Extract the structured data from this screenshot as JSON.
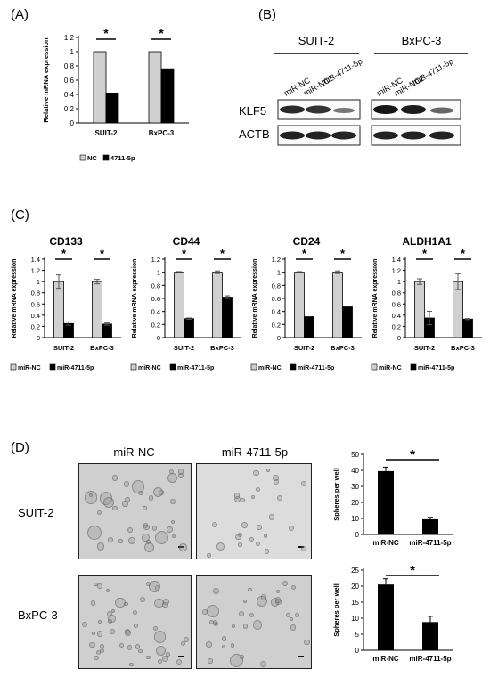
{
  "panels": {
    "A": "(A)",
    "B": "(B)",
    "C": "(C)",
    "D": "(D)"
  },
  "panel_a": {
    "chart_data": {
      "type": "bar",
      "categories": [
        "SUIT-2",
        "BxPC-3"
      ],
      "series": [
        {
          "name": "NC",
          "values": [
            1.0,
            1.0
          ],
          "color": "#d0d0d0"
        },
        {
          "name": "4711-5p",
          "values": [
            0.42,
            0.76
          ],
          "color": "#000000"
        }
      ],
      "ylabel": "Relative mRNA expression",
      "ylim": [
        0,
        1.2
      ],
      "yticks": [
        "0",
        "0.2",
        "0.4",
        "0.6",
        "0.8",
        "1",
        "1.2"
      ],
      "significance": [
        "*",
        "*"
      ],
      "legend": [
        "NC",
        "4711-5p"
      ],
      "legend_position": "bottom"
    }
  },
  "panel_b": {
    "cell_lines": [
      "SUIT-2",
      "BxPC-3"
    ],
    "lanes": [
      "miR-NC",
      "miR-NC2",
      "miR-4711-5p"
    ],
    "proteins": [
      "KLF5",
      "ACTB"
    ]
  },
  "panel_c": {
    "chart_data": [
      {
        "type": "bar",
        "title": "CD133",
        "categories": [
          "SUIT-2",
          "BxPC-3"
        ],
        "series": [
          {
            "name": "miR-NC",
            "values": [
              1.0,
              1.0
            ],
            "errors": [
              0.12,
              0.04
            ]
          },
          {
            "name": "miR-4711-5p",
            "values": [
              0.25,
              0.24
            ],
            "errors": [
              0.03,
              0.02
            ]
          }
        ],
        "ylabel": "Relative mRNA expression",
        "ylim": [
          0,
          1.4
        ],
        "yticks": [
          "0",
          "0.2",
          "0.4",
          "0.6",
          "0.8",
          "1",
          "1.2",
          "1.4"
        ],
        "significance": [
          "*",
          "*"
        ],
        "legend": [
          "miR-NC",
          "miR-4711-5p"
        ]
      },
      {
        "type": "bar",
        "title": "CD44",
        "categories": [
          "SUIT-2",
          "BxPC-3"
        ],
        "series": [
          {
            "name": "miR-NC",
            "values": [
              1.0,
              1.0
            ],
            "errors": [
              0.01,
              0.02
            ]
          },
          {
            "name": "miR-4711-5p",
            "values": [
              0.29,
              0.62
            ],
            "errors": [
              0.01,
              0.02
            ]
          }
        ],
        "ylabel": "Relative mRNA expression",
        "ylim": [
          0,
          1.2
        ],
        "yticks": [
          "0",
          "0.2",
          "0.4",
          "0.6",
          "0.8",
          "1",
          "1.2"
        ],
        "significance": [
          "*",
          "*"
        ],
        "legend": [
          "miR-NC",
          "miR-4711-5p"
        ]
      },
      {
        "type": "bar",
        "title": "CD24",
        "categories": [
          "SUIT-2",
          "BxPC-3"
        ],
        "series": [
          {
            "name": "miR-NC",
            "values": [
              1.0,
              1.0
            ],
            "errors": [
              0.01,
              0.02
            ]
          },
          {
            "name": "miR-4711-5p",
            "values": [
              0.32,
              0.47
            ],
            "errors": [
              0.0,
              0.0
            ]
          }
        ],
        "ylabel": "Relative mRNA expression",
        "ylim": [
          0,
          1.2
        ],
        "yticks": [
          "0",
          "0.2",
          "0.4",
          "0.6",
          "0.8",
          "1",
          "1.2"
        ],
        "significance": [
          "*",
          "*"
        ],
        "legend": [
          "miR-NC",
          "miR-4711-5p"
        ]
      },
      {
        "type": "bar",
        "title": "ALDH1A1",
        "categories": [
          "SUIT-2",
          "BxPC-3"
        ],
        "series": [
          {
            "name": "miR-NC",
            "values": [
              1.0,
              1.0
            ],
            "errors": [
              0.05,
              0.14
            ]
          },
          {
            "name": "miR-4711-5p",
            "values": [
              0.35,
              0.33
            ],
            "errors": [
              0.12,
              0.01
            ]
          }
        ],
        "ylabel": "Relative mRNA expression",
        "ylim": [
          0,
          1.4
        ],
        "yticks": [
          "0",
          "0.2",
          "0.4",
          "0.6",
          "0.8",
          "1",
          "1.2",
          "1.4"
        ],
        "significance": [
          "*",
          "*"
        ],
        "legend": [
          "miR-NC",
          "miR-4711-5p"
        ]
      }
    ]
  },
  "panel_d": {
    "column_labels": [
      "miR-NC",
      "miR-4711-5p"
    ],
    "row_labels": [
      "SUIT-2",
      "BxPC-3"
    ],
    "chart_data": [
      {
        "type": "bar",
        "categories": [
          "miR-NC",
          "miR-4711-5p"
        ],
        "values": [
          39.5,
          9.5
        ],
        "errors": [
          2.5,
          1.2
        ],
        "ylabel": "Spheres per well",
        "ylim": [
          0,
          50
        ],
        "yticks": [
          "0",
          "10",
          "20",
          "30",
          "40",
          "50"
        ],
        "significance": "*"
      },
      {
        "type": "bar",
        "categories": [
          "miR-NC",
          "miR-4711-5p"
        ],
        "values": [
          20.5,
          8.8
        ],
        "errors": [
          1.8,
          1.8
        ],
        "ylabel": "Spheres per well",
        "ylim": [
          0,
          25
        ],
        "yticks": [
          "0",
          "5",
          "10",
          "15",
          "20",
          "25"
        ],
        "significance": "*"
      }
    ]
  }
}
